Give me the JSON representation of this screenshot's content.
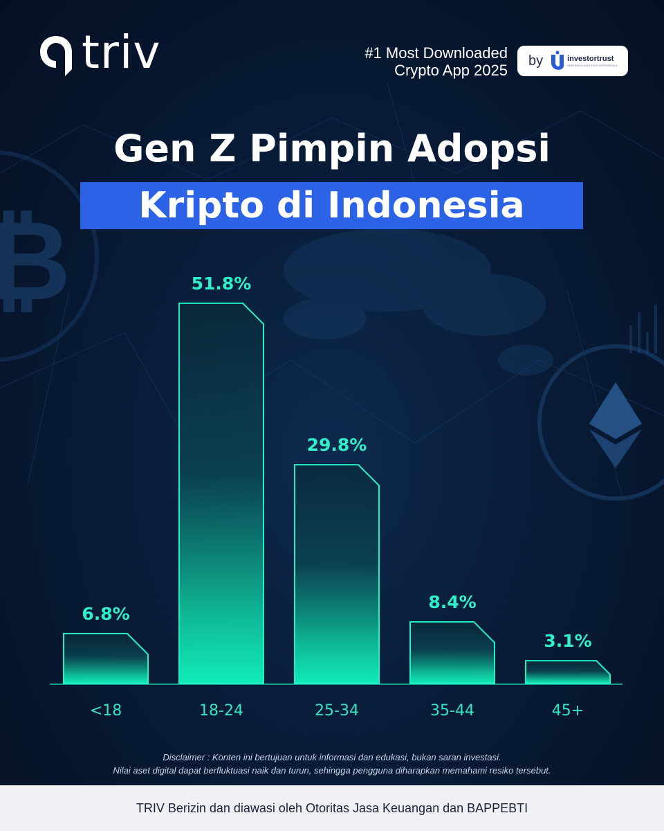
{
  "brand": {
    "logo_text": "triv",
    "tagline_line1": "#1 Most Downloaded",
    "tagline_line2": "Crypto App 2025",
    "badge_by": "by",
    "badge_partner": "investortrust",
    "badge_partner_sub": "REFERENSI INVESTASI TERPERCAYA"
  },
  "title": {
    "line1": "Gen Z Pimpin Adopsi",
    "line2": "Kripto di Indonesia"
  },
  "chart_data": {
    "type": "bar",
    "categories": [
      "<18",
      "18-24",
      "25-34",
      "35-44",
      "45+"
    ],
    "values": [
      6.8,
      51.8,
      29.8,
      8.4,
      3.1
    ],
    "value_labels": [
      "6.8%",
      "51.8%",
      "29.8%",
      "8.4%",
      "3.1%"
    ],
    "unit": "%",
    "title": "",
    "xlabel": "",
    "ylabel": "",
    "ylim": [
      0,
      60
    ],
    "grid": false,
    "legend": "none",
    "colors": {
      "bar_top": "#12ecb8",
      "bar_fade": "#0a2a3a",
      "bar_stroke": "#22f0c4",
      "label": "#2ff0c8",
      "tick_label": "#35e4c2"
    }
  },
  "disclaimer": {
    "line1": "Disclaimer : Konten ini bertujuan untuk informasi dan edukasi, bukan saran investasi.",
    "line2": "Nilai aset digital dapat berfluktuasi naik dan turun, sehingga pengguna diharapkan memahami resiko tersebut."
  },
  "footer": {
    "text": "TRIV Berizin dan diawasi oleh Otoritas Jasa Keuangan dan BAPPEBTI"
  },
  "colors": {
    "background": "#081c38",
    "title_highlight": "#2c62e6",
    "footer_bg": "#eef0f3"
  },
  "decor": {
    "left_icon": "bitcoin-icon",
    "right_icon": "ethereum-icon",
    "backdrop": "world-map-dots"
  }
}
